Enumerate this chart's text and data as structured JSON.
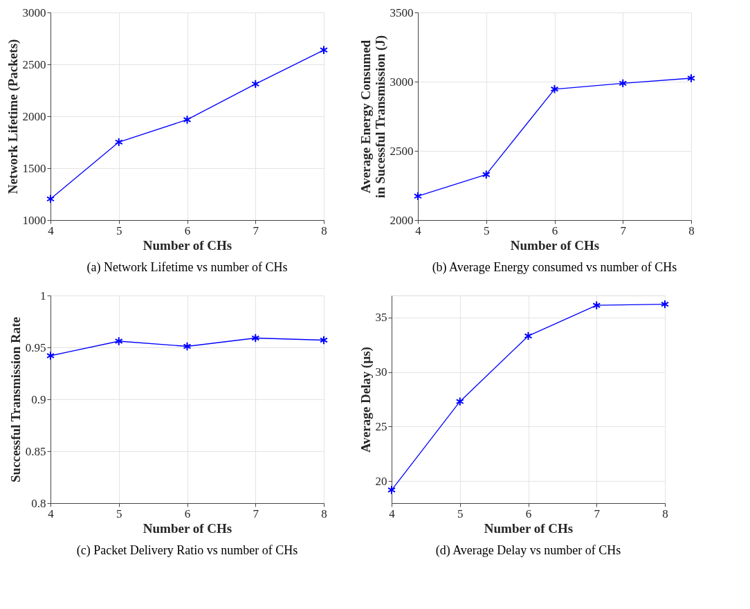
{
  "chart_data": [
    {
      "type": "line",
      "x": [
        4,
        5,
        6,
        7,
        8
      ],
      "xlabel": "Number of CHs",
      "ylabel": "Network Lifetime (Packets)",
      "annotations": [
        "(a) Network Lifetime vs number of CHs"
      ],
      "xlim": [
        4,
        8
      ],
      "xticks": [
        4,
        5,
        6,
        7,
        8
      ],
      "ylim": [
        1000,
        3000
      ],
      "yticks": [
        1000,
        1500,
        2000,
        2500,
        3000
      ],
      "grid": true,
      "marker": "cross",
      "line_style": "solid",
      "series": [
        {
          "color": "#0000ff",
          "values": [
            1204,
            1751,
            1967,
            2311,
            2638
          ]
        }
      ]
    },
    {
      "type": "line",
      "x": [
        4,
        5,
        6,
        7,
        8
      ],
      "xlabel": "Number of CHs",
      "ylabel": "Average Energy Consumed\nin Sucessful Transmission (J)",
      "annotations": [
        "(b) Average Energy consumed vs number of CHs"
      ],
      "xlim": [
        4,
        8
      ],
      "xticks": [
        4,
        5,
        6,
        7,
        8
      ],
      "ylim": [
        2000,
        3500
      ],
      "yticks": [
        2000,
        2500,
        3000,
        3500
      ],
      "grid": true,
      "marker": "cross",
      "line_style": "solid",
      "series": [
        {
          "color": "#0000ff",
          "values": [
            2173,
            2329,
            2946,
            2988,
            3025
          ]
        }
      ]
    },
    {
      "type": "line",
      "x": [
        4,
        5,
        6,
        7,
        8
      ],
      "xlabel": "Number of CHs",
      "ylabel": "Successful Transmission Rate",
      "annotations": [
        "(c) Packet Delivery Ratio vs number of CHs"
      ],
      "xlim": [
        4,
        8
      ],
      "xticks": [
        4,
        5,
        6,
        7,
        8
      ],
      "ylim": [
        0.8,
        1
      ],
      "yticks": [
        0.8,
        0.85,
        0.9,
        0.95,
        1
      ],
      "grid": true,
      "marker": "cross",
      "line_style": "solid",
      "series": [
        {
          "color": "#0000ff",
          "values": [
            0.942,
            0.956,
            0.951,
            0.959,
            0.957
          ]
        }
      ]
    },
    {
      "type": "line",
      "x": [
        4,
        5,
        6,
        7,
        8
      ],
      "xlabel": "Number of CHs",
      "ylabel": "Average Delay (μs)",
      "annotations": [
        "(d)  Average Delay vs number of CHs"
      ],
      "xlim": [
        4,
        8
      ],
      "xticks": [
        4,
        5,
        6,
        7,
        8
      ],
      "ylim": [
        18,
        37
      ],
      "yticks": [
        20,
        25,
        30,
        35
      ],
      "grid": true,
      "marker": "cross",
      "line_style": "solid",
      "series": [
        {
          "color": "#0000ff",
          "values": [
            19.2,
            27.3,
            33.3,
            36.1,
            36.2
          ]
        }
      ]
    }
  ]
}
